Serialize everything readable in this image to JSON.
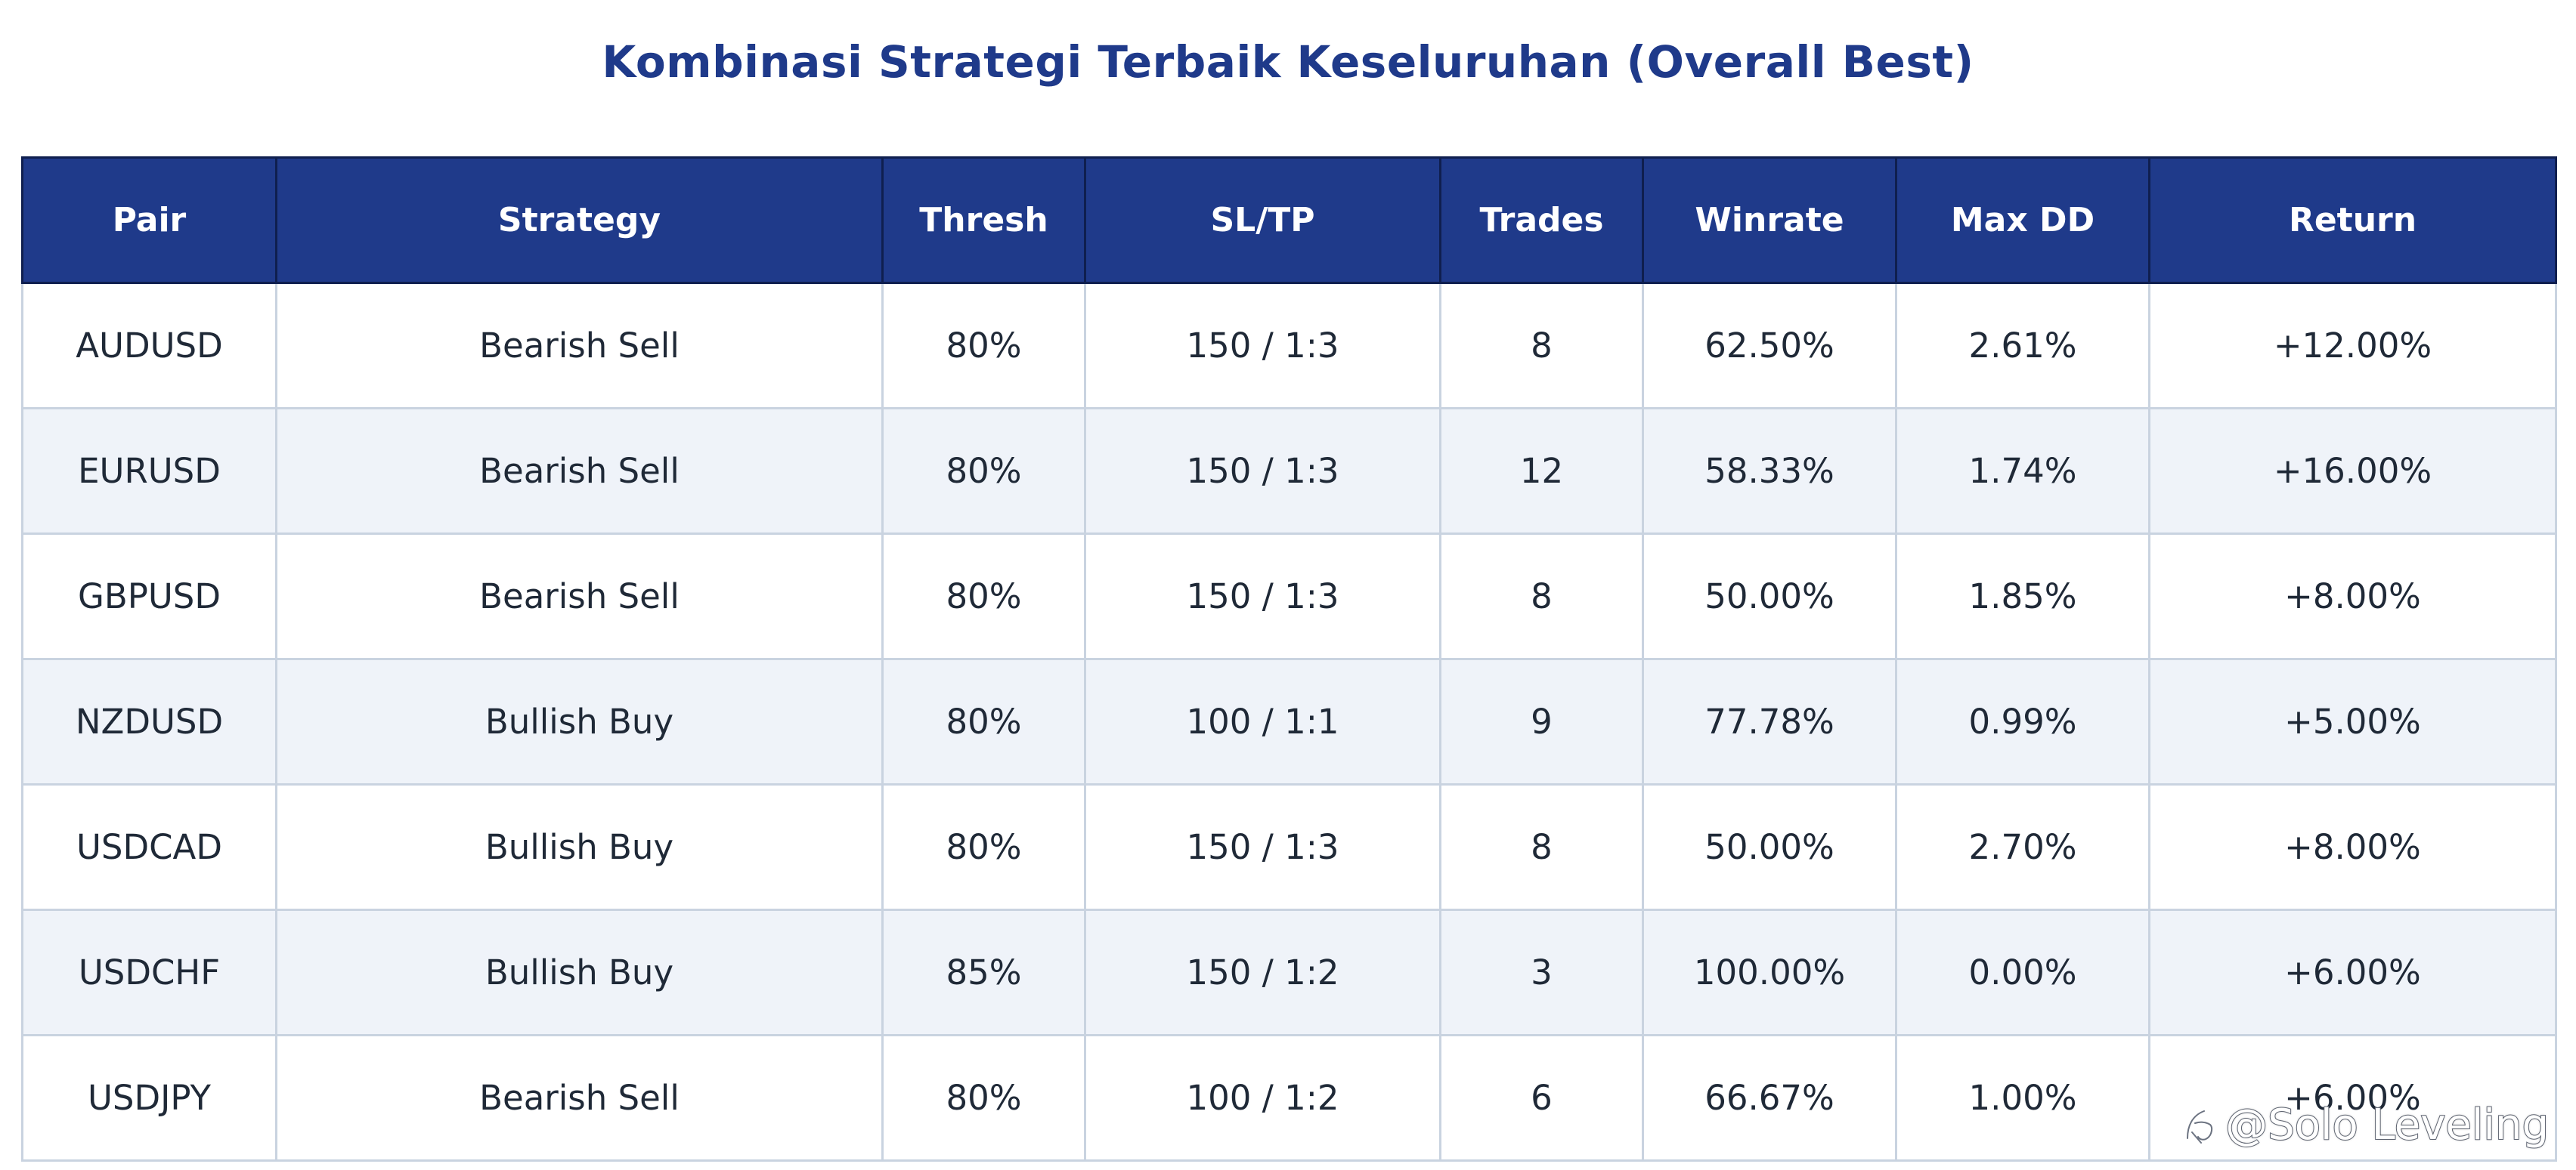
{
  "chart_data": {
    "type": "table",
    "title": "Kombinasi Strategi Terbaik Keseluruhan (Overall Best)",
    "columns": [
      "Pair",
      "Strategy",
      "Thresh",
      "SL/TP",
      "Trades",
      "Winrate",
      "Max DD",
      "Return"
    ],
    "rows": [
      [
        "AUDUSD",
        "Bearish Sell",
        "80%",
        "150 / 1:3",
        "8",
        "62.50%",
        "2.61%",
        "+12.00%"
      ],
      [
        "EURUSD",
        "Bearish Sell",
        "80%",
        "150 / 1:3",
        "12",
        "58.33%",
        "1.74%",
        "+16.00%"
      ],
      [
        "GBPUSD",
        "Bearish Sell",
        "80%",
        "150 / 1:3",
        "8",
        "50.00%",
        "1.85%",
        "+8.00%"
      ],
      [
        "NZDUSD",
        "Bullish Buy",
        "80%",
        "100 / 1:1",
        "9",
        "77.78%",
        "0.99%",
        "+5.00%"
      ],
      [
        "USDCAD",
        "Bullish Buy",
        "80%",
        "150 / 1:3",
        "8",
        "50.00%",
        "2.70%",
        "+8.00%"
      ],
      [
        "USDCHF",
        "Bullish Buy",
        "85%",
        "150 / 1:2",
        "3",
        "100.00%",
        "0.00%",
        "+6.00%"
      ],
      [
        "USDJPY",
        "Bearish Sell",
        "80%",
        "100 / 1:2",
        "6",
        "66.67%",
        "1.00%",
        "+6.00%"
      ]
    ],
    "colors": {
      "header_bg": "#1f3a8a",
      "header_text": "#ffffff",
      "title_text": "#1f3a8a",
      "row_alt_bg": "#eff3f9",
      "row_bg": "#ffffff",
      "border": "#c9d3e0"
    }
  },
  "watermark": {
    "text": "@Solo Leveling",
    "icon": "zhihu-logo-icon"
  }
}
